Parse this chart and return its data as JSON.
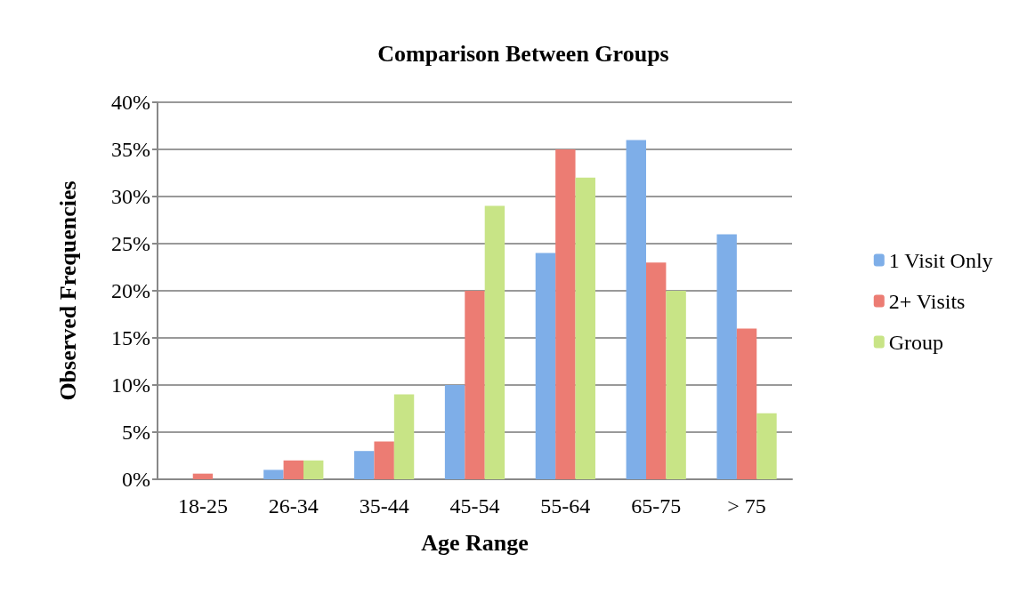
{
  "chart_data": {
    "type": "bar",
    "title": "Comparison Between Groups",
    "xlabel": "Age Range",
    "ylabel": "Observed Frequencies",
    "categories": [
      "18-25",
      "26-34",
      "35-44",
      "45-54",
      "55-64",
      "65-75",
      "> 75"
    ],
    "series": [
      {
        "name": "1 Visit Only",
        "color": "#7eaee8",
        "values": [
          0,
          1,
          3,
          10,
          24,
          36,
          26
        ]
      },
      {
        "name": "2+ Visits",
        "color": "#ec7c73",
        "values": [
          0.6,
          2,
          4,
          20,
          35,
          23,
          16
        ]
      },
      {
        "name": "Group",
        "color": "#c8e486",
        "values": [
          0,
          2,
          9,
          29,
          32,
          20,
          7
        ]
      }
    ],
    "ylim": [
      0,
      40
    ],
    "yticks": [
      {
        "value": 0,
        "label": "0%"
      },
      {
        "value": 5,
        "label": "5%"
      },
      {
        "value": 10,
        "label": "10%"
      },
      {
        "value": 15,
        "label": "15%"
      },
      {
        "value": 20,
        "label": "20%"
      },
      {
        "value": 25,
        "label": "25%"
      },
      {
        "value": 30,
        "label": "30%"
      },
      {
        "value": 35,
        "label": "35%"
      },
      {
        "value": 40,
        "label": "40%"
      }
    ],
    "grid": "y",
    "legend": "right"
  }
}
